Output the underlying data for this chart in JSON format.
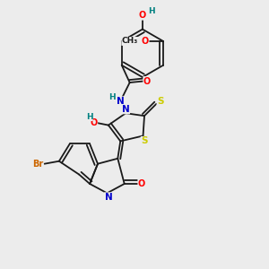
{
  "bg_color": "#ececec",
  "bond_color": "#1a1a1a",
  "atom_colors": {
    "O": "#ff0000",
    "N": "#0000cc",
    "S": "#cccc00",
    "Br": "#cc6600",
    "H": "#008080",
    "C": "#1a1a1a"
  },
  "lw": 1.3
}
